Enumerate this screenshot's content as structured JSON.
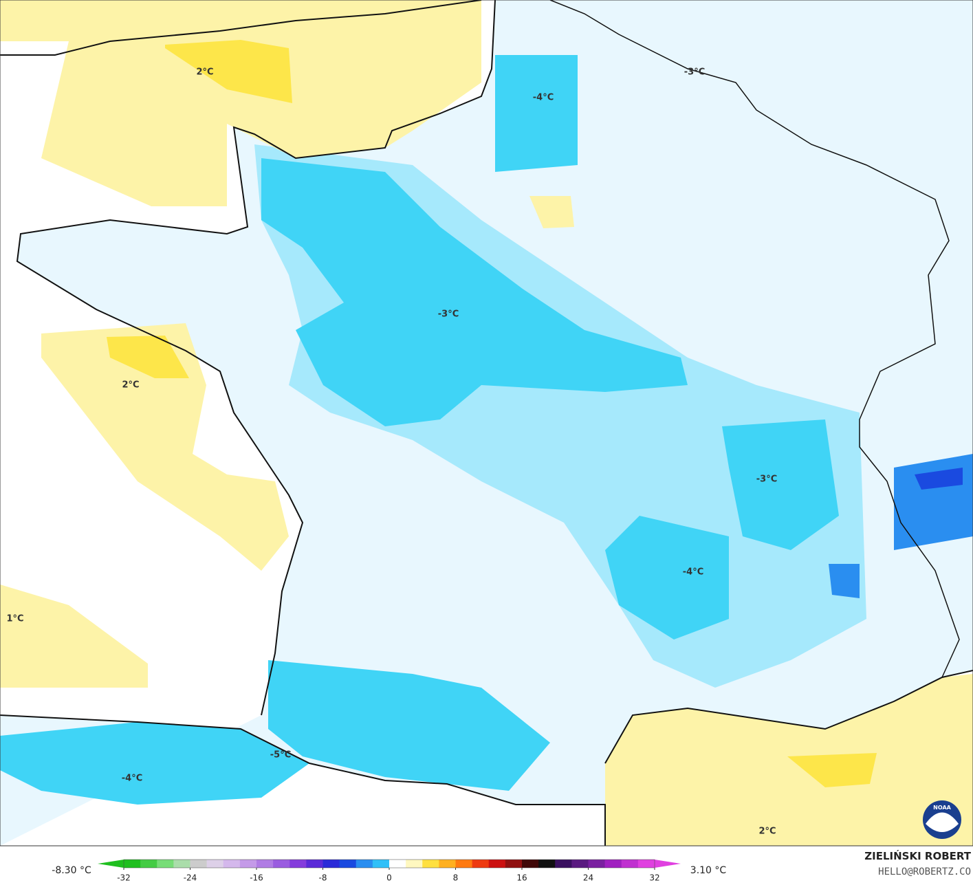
{
  "map": {
    "labels": [
      "2°C",
      "-4°C",
      "-3°C",
      "-3°C",
      "2°C",
      "-3°C",
      "-4°C",
      "1°C",
      "-5°C",
      "-4°C",
      "2°C"
    ]
  },
  "colorbar": {
    "min_label": "-8.30 °C",
    "max_label": "3.10 °C",
    "ticks": [
      -32,
      -24,
      -16,
      -8,
      0,
      8,
      16,
      24,
      32
    ],
    "colors": [
      "#1fbf1f",
      "#44cc44",
      "#77dd77",
      "#aaddaa",
      "#cccccc",
      "#ddd0e8",
      "#d4b8ec",
      "#c49ae8",
      "#b07ce4",
      "#9a5ce0",
      "#843cdc",
      "#5a2ad8",
      "#2a2ad8",
      "#1a4ae0",
      "#2a8ef0",
      "#30c0f8",
      "#ffffff",
      "#fff8c0",
      "#ffe040",
      "#ffb020",
      "#ff7a10",
      "#ee3a10",
      "#cc1010",
      "#901010",
      "#400808",
      "#101010",
      "#3a1060",
      "#5a1a80",
      "#7a20a0",
      "#a020c0",
      "#c030d0",
      "#e040e0"
    ]
  },
  "credits": {
    "author": "ZIELIŃSKI ROBERT",
    "email": "HELLO@ROBERTZ.CO",
    "logo": "NOAA"
  }
}
